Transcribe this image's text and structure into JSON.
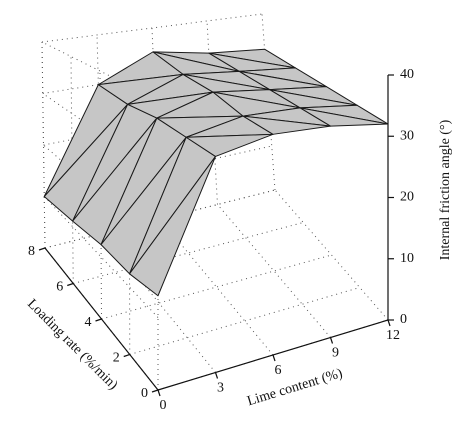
{
  "chart_data": {
    "type": "surface3d",
    "x_label": "Lime content (%)",
    "y_label": "Loading rate (%/min)",
    "z_label": "Internal friction angle (°)",
    "x": [
      0,
      3,
      6,
      9,
      12
    ],
    "y": [
      0,
      2,
      4,
      6,
      8
    ],
    "z": [
      [
        13,
        12,
        12,
        11,
        10
      ],
      [
        31,
        31,
        31,
        30,
        30
      ],
      [
        33,
        33,
        34,
        34,
        35
      ],
      [
        33,
        33,
        33,
        33,
        33
      ],
      [
        32,
        32,
        32,
        32,
        32
      ]
    ],
    "xlim": [
      0,
      12
    ],
    "ylim": [
      0,
      8
    ],
    "zlim": [
      0,
      40
    ],
    "xticks": [
      0,
      3,
      6,
      9,
      12
    ],
    "yticks": [
      0,
      2,
      4,
      6,
      8
    ],
    "zticks": [
      0,
      10,
      20,
      30,
      40
    ],
    "grid": true,
    "color": "#c6c6c6"
  }
}
